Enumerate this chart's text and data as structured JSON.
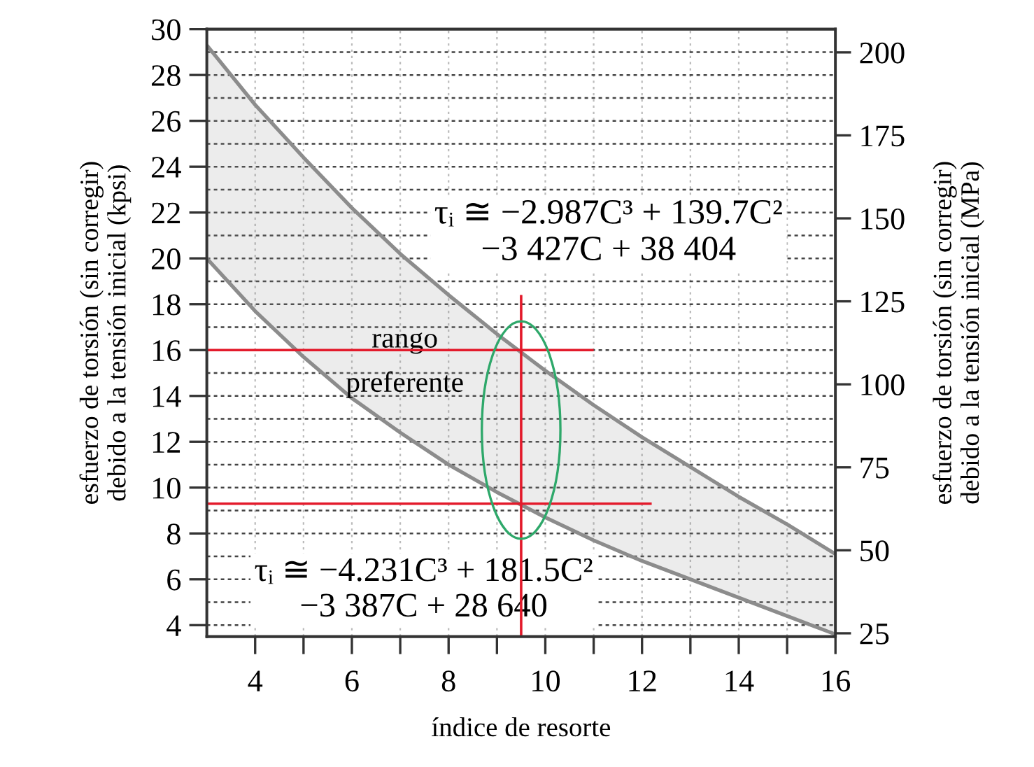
{
  "chart_data": {
    "type": "line",
    "xlabel": "índice de resorte",
    "ylabel": "esfuerzo de torsión (sin corregir)\ndebido a la tensión inicial (kpsi)",
    "y2label": "esfuerzo de torsión (sin corregir)\ndebido a la tensión inicial (MPa)",
    "annotations": [
      "τᵢ ≅ −2.987C³ + 139.7C²\n−3 427C + 38 404",
      "rango\npreferente",
      "τᵢ ≅ −4.231C³ + 181.5C²\n−3 387C + 28 640"
    ],
    "xlim": [
      3,
      16
    ],
    "xticks": [
      4,
      {
        "value": 5,
        "label": null
      },
      6,
      {
        "value": 7,
        "label": null
      },
      8,
      {
        "value": 9,
        "label": null
      },
      10,
      {
        "value": 11,
        "label": null
      },
      12,
      {
        "value": 13,
        "label": null
      },
      14,
      {
        "value": 15,
        "label": null
      },
      16
    ],
    "ylim": [
      3.5,
      30
    ],
    "yticks": [
      4,
      {
        "value": 5,
        "label": null
      },
      6,
      {
        "value": 7,
        "label": null
      },
      8,
      {
        "value": 9,
        "label": null
      },
      10,
      {
        "value": 11,
        "label": null
      },
      12,
      {
        "value": 13,
        "label": null
      },
      14,
      {
        "value": 15,
        "label": null
      },
      16,
      {
        "value": 17,
        "label": null
      },
      18,
      {
        "value": 19,
        "label": null
      },
      20,
      {
        "value": 21,
        "label": null
      },
      22,
      {
        "value": 23,
        "label": null
      },
      24,
      {
        "value": 25,
        "label": null
      },
      26,
      {
        "value": 27,
        "label": null
      },
      28,
      {
        "value": 29,
        "label": null
      },
      30
    ],
    "y2lim": [
      24,
      207
    ],
    "y2ticks": [
      25,
      50,
      75,
      100,
      125,
      150,
      175,
      200
    ],
    "grid": true,
    "line_style": "solid",
    "series": [
      {
        "color": "#8c8c8c",
        "x": [
          3,
          4,
          5,
          6,
          7,
          8,
          9,
          10,
          11,
          12,
          13,
          14,
          15,
          16
        ],
        "values": [
          29.3,
          26.7,
          24.4,
          22.2,
          20.2,
          18.4,
          16.7,
          15.1,
          13.6,
          12.2,
          10.9,
          9.6,
          8.4,
          7.1
        ],
        "lower": [
          20.0,
          17.7,
          15.7,
          13.9,
          12.4,
          11.0,
          9.8,
          8.7,
          7.7,
          6.8,
          6.0,
          5.2,
          4.4,
          3.6
        ],
        "upper": [
          29.3,
          26.7,
          24.4,
          22.2,
          20.2,
          18.4,
          16.7,
          15.1,
          13.6,
          12.2,
          10.9,
          9.6,
          8.4,
          7.1
        ]
      },
      {
        "color": "#8c8c8c",
        "x": [
          3,
          4,
          5,
          6,
          7,
          8,
          9,
          10,
          11,
          12,
          13,
          14,
          15,
          16
        ],
        "values": [
          20.0,
          17.7,
          15.7,
          13.9,
          12.4,
          11.0,
          9.8,
          8.7,
          7.7,
          6.8,
          6.0,
          5.2,
          4.4,
          3.6
        ]
      },
      {
        "color": "#e31a2b",
        "x": [
          9.5,
          9.5
        ],
        "values": [
          3.5,
          18.4
        ]
      },
      {
        "color": "#e31a2b",
        "x": [
          3,
          11
        ],
        "values": [
          16,
          16
        ]
      },
      {
        "color": "#e31a2b",
        "x": [
          3,
          12.2
        ],
        "values": [
          9.3,
          9.3
        ]
      }
    ]
  }
}
